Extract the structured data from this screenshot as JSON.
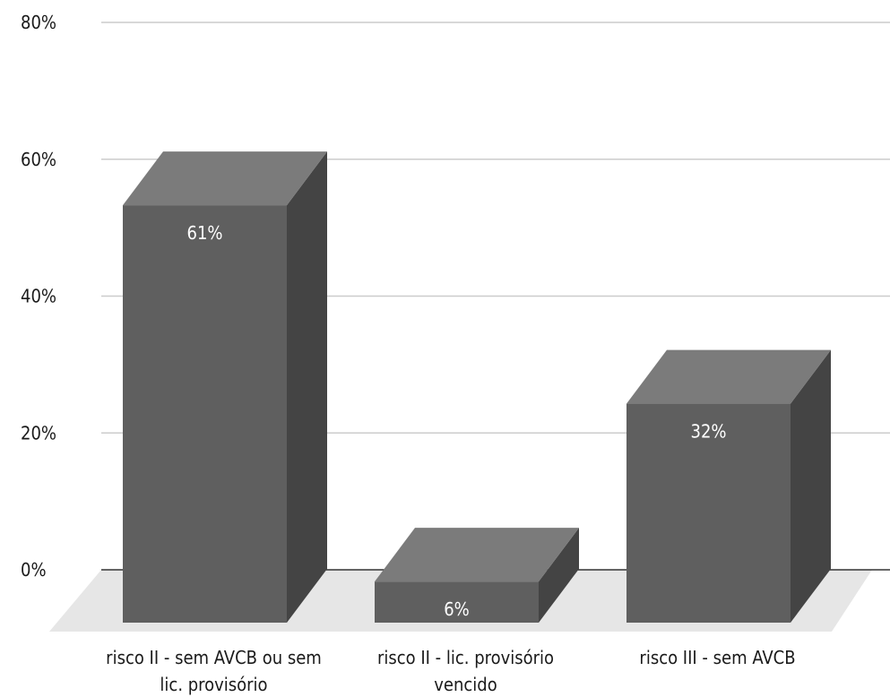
{
  "chart_data": {
    "type": "bar",
    "style": "3d-column",
    "categories": [
      [
        "risco II - sem AVCB ou sem",
        "lic. provisório"
      ],
      [
        "risco II - lic. provisório",
        "vencido"
      ],
      [
        "risco III - sem AVCB"
      ]
    ],
    "values": [
      61,
      6,
      32
    ],
    "data_labels": [
      "61%",
      "6%",
      "32%"
    ],
    "ylim": [
      0,
      80
    ],
    "yticks": [
      0,
      20,
      40,
      60,
      80
    ],
    "ytick_labels": [
      "0%",
      "20%",
      "40%",
      "60%",
      "80%"
    ],
    "grid": true,
    "legend": "none",
    "colors": {
      "front": "#5f5f5f",
      "top": "#7b7b7b",
      "side": "#444444",
      "floor": "#e6e6e6",
      "grid": "#cccccc",
      "baseline": "#333333"
    }
  }
}
